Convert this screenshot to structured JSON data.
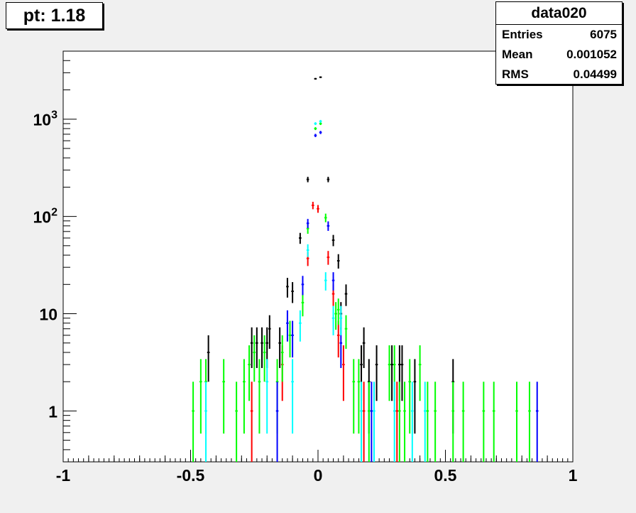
{
  "pad_title": "pt: 1.18",
  "stats": {
    "name": "data020",
    "rows": [
      {
        "label": "Entries",
        "value": "6075"
      },
      {
        "label": "Mean",
        "value": "0.001052"
      },
      {
        "label": "RMS",
        "value": "0.04499"
      }
    ]
  },
  "chart_data": {
    "type": "scatter",
    "title": "pt: 1.18",
    "xlabel": "",
    "ylabel": "",
    "xlim": [
      -1,
      1
    ],
    "ylim": [
      0.3,
      5000
    ],
    "yscale": "log",
    "x_ticks": [
      "-1",
      "-0.5",
      "0",
      "0.5",
      "1"
    ],
    "y_ticks": [
      "1",
      "10",
      "10^2",
      "10^3"
    ],
    "grid": false,
    "legend": "none",
    "bin_width": 0.01,
    "series": [
      {
        "color": "#000000",
        "points": [
          [
            -0.43,
            4
          ],
          [
            -0.26,
            5
          ],
          [
            -0.24,
            5
          ],
          [
            -0.22,
            5
          ],
          [
            -0.2,
            5
          ],
          [
            -0.19,
            7
          ],
          [
            -0.15,
            5
          ],
          [
            -0.12,
            19
          ],
          [
            -0.1,
            17
          ],
          [
            -0.07,
            60
          ],
          [
            -0.04,
            240
          ],
          [
            -0.01,
            2600
          ],
          [
            0.01,
            2700
          ],
          [
            0.04,
            240
          ],
          [
            0.06,
            57
          ],
          [
            0.08,
            35
          ],
          [
            0.09,
            10
          ],
          [
            0.11,
            16
          ],
          [
            0.17,
            3
          ],
          [
            0.18,
            5
          ],
          [
            0.2,
            2
          ],
          [
            0.23,
            3
          ],
          [
            0.29,
            3
          ],
          [
            0.32,
            3
          ],
          [
            0.33,
            3
          ],
          [
            0.38,
            2
          ],
          [
            0.53,
            2
          ]
        ]
      },
      {
        "color": "#ff0000",
        "points": [
          [
            -0.26,
            1
          ],
          [
            -0.14,
            3
          ],
          [
            -0.04,
            37
          ],
          [
            -0.02,
            130
          ],
          [
            0.0,
            120
          ],
          [
            0.04,
            38
          ],
          [
            0.06,
            16
          ],
          [
            0.08,
            6
          ],
          [
            0.1,
            3
          ],
          [
            0.18,
            1
          ],
          [
            0.31,
            1
          ]
        ]
      },
      {
        "color": "#00ff00",
        "points": [
          [
            -0.49,
            1
          ],
          [
            -0.46,
            2
          ],
          [
            -0.44,
            2
          ],
          [
            -0.37,
            2
          ],
          [
            -0.32,
            1
          ],
          [
            -0.29,
            2
          ],
          [
            -0.27,
            3
          ],
          [
            -0.25,
            4
          ],
          [
            -0.23,
            2
          ],
          [
            -0.21,
            4
          ],
          [
            -0.16,
            2
          ],
          [
            -0.14,
            4
          ],
          [
            -0.11,
            6
          ],
          [
            -0.06,
            13
          ],
          [
            -0.04,
            75
          ],
          [
            -0.01,
            800
          ],
          [
            0.01,
            900
          ],
          [
            0.03,
            97
          ],
          [
            0.07,
            10
          ],
          [
            0.08,
            11
          ],
          [
            0.11,
            7
          ],
          [
            0.14,
            2
          ],
          [
            0.16,
            2
          ],
          [
            0.2,
            1
          ],
          [
            0.28,
            3
          ],
          [
            0.3,
            3
          ],
          [
            0.32,
            1
          ],
          [
            0.34,
            1
          ],
          [
            0.36,
            2
          ],
          [
            0.4,
            3
          ],
          [
            0.43,
            1
          ],
          [
            0.46,
            1
          ],
          [
            0.53,
            1
          ],
          [
            0.57,
            1
          ],
          [
            0.65,
            1
          ],
          [
            0.69,
            1
          ],
          [
            0.78,
            1
          ],
          [
            0.83,
            1
          ]
        ]
      },
      {
        "color": "#0000ff",
        "points": [
          [
            -0.16,
            1
          ],
          [
            -0.12,
            8
          ],
          [
            -0.1,
            6
          ],
          [
            -0.06,
            20
          ],
          [
            -0.04,
            85
          ],
          [
            -0.01,
            680
          ],
          [
            0.01,
            730
          ],
          [
            0.04,
            80
          ],
          [
            0.06,
            22
          ],
          [
            0.09,
            5
          ],
          [
            0.21,
            1
          ],
          [
            0.86,
            1
          ]
        ]
      },
      {
        "color": "#00ffff",
        "points": [
          [
            -0.44,
            1
          ],
          [
            -0.2,
            2
          ],
          [
            -0.1,
            2
          ],
          [
            -0.07,
            8
          ],
          [
            -0.04,
            45
          ],
          [
            -0.01,
            900
          ],
          [
            0.01,
            950
          ],
          [
            0.03,
            22
          ],
          [
            0.06,
            9
          ],
          [
            0.09,
            9
          ],
          [
            0.17,
            1
          ],
          [
            0.22,
            1
          ],
          [
            0.3,
            1
          ],
          [
            0.37,
            1
          ],
          [
            0.42,
            1
          ]
        ]
      }
    ]
  }
}
